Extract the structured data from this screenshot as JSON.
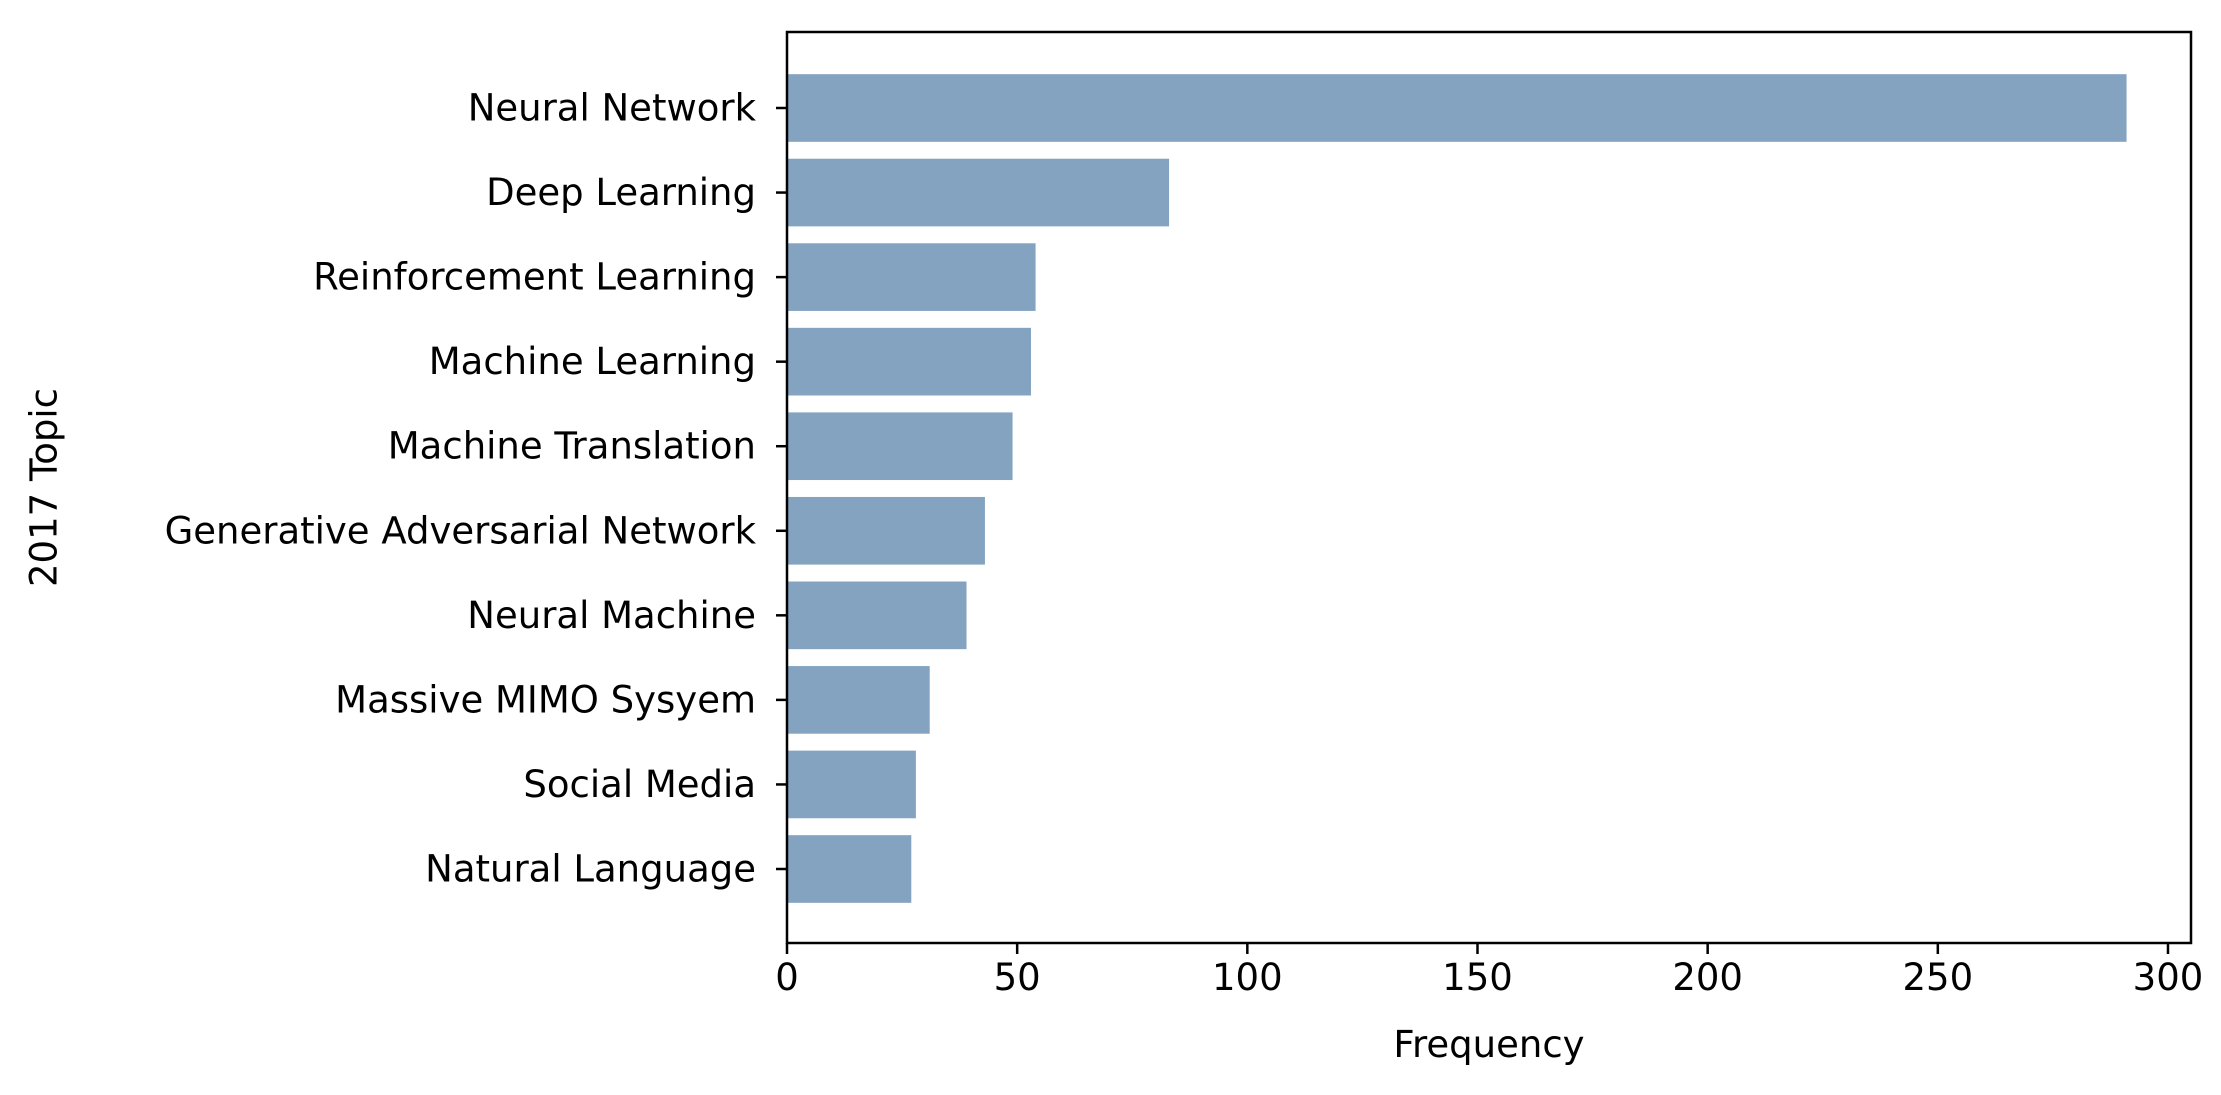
{
  "chart_data": {
    "type": "bar",
    "orientation": "horizontal",
    "categories": [
      "Neural Network",
      "Deep Learning",
      "Reinforcement Learning",
      "Machine Learning",
      "Machine Translation",
      "Generative Adversarial Network",
      "Neural Machine",
      "Massive MIMO Sysyem",
      "Social Media",
      "Natural Language"
    ],
    "values": [
      291,
      83,
      54,
      53,
      49,
      43,
      39,
      31,
      28,
      27
    ],
    "xlabel": "Frequency",
    "ylabel": "2017 Topic",
    "xlim": [
      0,
      305
    ],
    "xticks": [
      0,
      50,
      100,
      150,
      200,
      250,
      300
    ],
    "grid": false,
    "bar_color": "#83a3c0"
  }
}
